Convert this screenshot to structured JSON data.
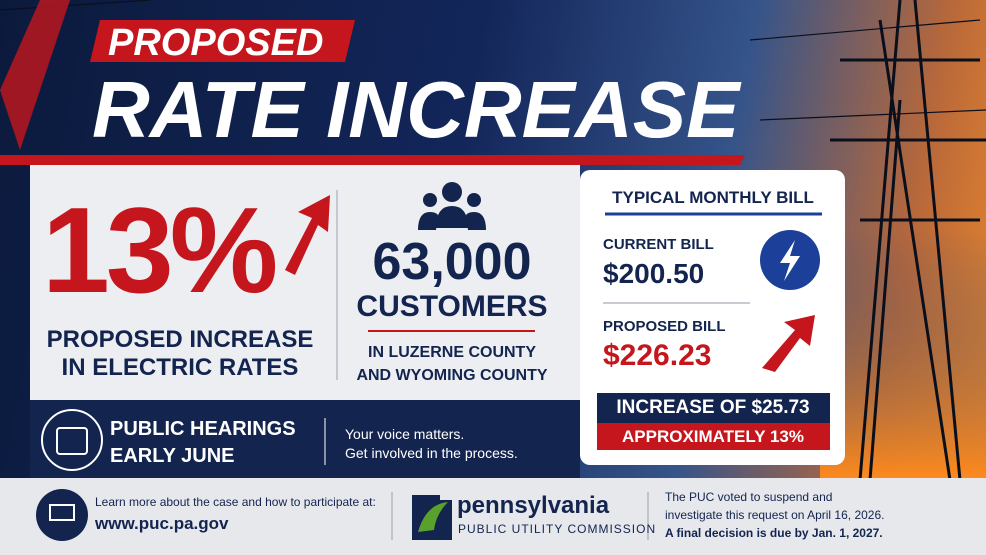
{
  "header": {
    "kicker": "PROPOSED",
    "title": "RATE INCREASE"
  },
  "rate": {
    "value": "13%",
    "caption": [
      "PROPOSED INCREASE",
      "IN ELECTRIC RATES"
    ]
  },
  "customers": {
    "value": "63,000",
    "label": "CUSTOMERS",
    "area": [
      "IN LUZERNE COUNTY",
      "AND WYOMING COUNTY"
    ]
  },
  "bill": {
    "title": "TYPICAL MONTHLY BILL",
    "current_label": "CURRENT BILL",
    "current": "$200.50",
    "proposed_label": "PROPOSED BILL",
    "proposed": "$226.23",
    "increase": "INCREASE OF $25.73",
    "approx": "APPROXIMATELY 13%"
  },
  "hearings": {
    "title": [
      "PUBLIC HEARINGS",
      "EARLY JUNE"
    ],
    "note": [
      "Your voice matters.",
      "Get involved in the process."
    ]
  },
  "footer": {
    "learn": "Learn more about the case and how to participate at:",
    "url": "www.puc.pa.gov",
    "org": "pennsylvania",
    "org_sub": "PUBLIC UTILITY COMMISSION",
    "notice": [
      "The PUC voted to suspend and",
      "investigate this request on April 16, 2026.",
      "A final decision is due by Jan. 1, 2027."
    ]
  }
}
